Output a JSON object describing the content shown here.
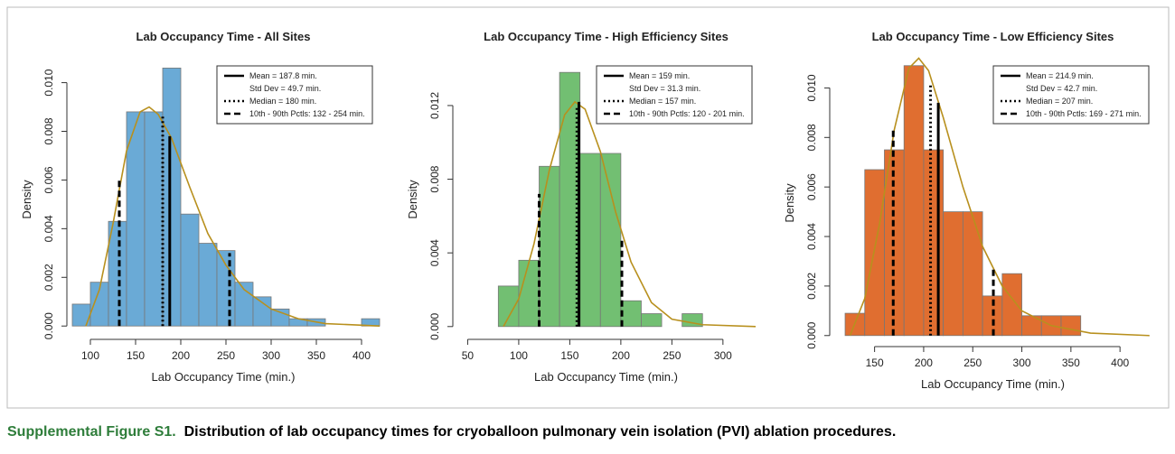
{
  "chart_data": [
    {
      "type": "histogram",
      "title": "Lab Occupancy Time - All Sites",
      "xlabel": "Lab Occupancy Time (min.)",
      "ylabel": "Density",
      "color": "#6aaad6",
      "curve_color": "#b8901e",
      "bins": [
        80,
        100,
        120,
        140,
        160,
        180,
        200,
        220,
        240,
        260,
        280,
        300,
        320,
        340,
        360,
        380,
        400,
        420
      ],
      "counts": [
        0.0009,
        0.0018,
        0.0043,
        0.0088,
        0.0088,
        0.0106,
        0.0046,
        0.0034,
        0.0031,
        0.0018,
        0.0012,
        0.0007,
        0.0003,
        0.0003,
        0,
        0,
        0.0003
      ],
      "xlim": [
        78,
        416
      ],
      "ylim": [
        -0.0004,
        0.0108
      ],
      "xticks": [
        100,
        150,
        200,
        250,
        300,
        350,
        400
      ],
      "yticks": [
        {
          "value": 0,
          "label": "0.000"
        },
        {
          "value": 0.002,
          "label": "0.002"
        },
        {
          "value": 0.004,
          "label": "0.004"
        },
        {
          "value": 0.006,
          "label": "0.006"
        },
        {
          "value": 0.008,
          "label": "0.008"
        },
        {
          "value": 0.01,
          "label": "0.010"
        }
      ],
      "curve": {
        "x": [
          95,
          110,
          125,
          140,
          155,
          165,
          175,
          190,
          210,
          230,
          250,
          270,
          300,
          330,
          360,
          420
        ],
        "y": [
          0,
          0.0015,
          0.0042,
          0.0072,
          0.0088,
          0.009,
          0.0087,
          0.0077,
          0.0057,
          0.0038,
          0.0025,
          0.0015,
          0.0007,
          0.0003,
          0.0001,
          0
        ]
      },
      "vlines": [
        {
          "x": 187.8,
          "top": 0.0078,
          "style": "solid"
        },
        {
          "x": 180,
          "top": 0.0087,
          "style": "dotted"
        },
        {
          "x": 132,
          "top": 0.006,
          "style": "dashed"
        },
        {
          "x": 254,
          "top": 0.003,
          "style": "dashed"
        }
      ],
      "legend_position": "topright",
      "legend": [
        {
          "label": "Mean = 187.8 min.",
          "style": "solid"
        },
        {
          "label": "Std Dev = 49.7 min."
        },
        {
          "label": "Median = 180 min.",
          "style": "dotted"
        },
        {
          "label": "10th - 90th Pctls: 132 - 254 min.",
          "style": "dashed"
        }
      ]
    },
    {
      "type": "histogram",
      "title": "Lab Occupancy Time - High Efficiency Sites",
      "xlabel": "Lab Occupancy Time (min.)",
      "ylabel": "Density",
      "color": "#72bf72",
      "curve_color": "#b8901e",
      "bins": [
        40,
        60,
        80,
        100,
        120,
        140,
        160,
        180,
        200,
        220,
        240,
        260,
        280
      ],
      "counts": [
        0,
        0,
        0.0022,
        0.0036,
        0.0087,
        0.0138,
        0.0094,
        0.0094,
        0.0014,
        0.0007,
        0,
        0.0007
      ],
      "xlim": [
        39,
        332
      ],
      "ylim": [
        -0.0005,
        0.0143
      ],
      "xticks": [
        50,
        100,
        150,
        200,
        250,
        300
      ],
      "yticks": [
        {
          "value": 0,
          "label": "0.000"
        },
        {
          "value": 0.004,
          "label": "0.004"
        },
        {
          "value": 0.008,
          "label": "0.008"
        },
        {
          "value": 0.012,
          "label": "0.012"
        }
      ],
      "curve": {
        "x": [
          85,
          100,
          115,
          130,
          145,
          155,
          165,
          180,
          195,
          210,
          230,
          250,
          280,
          332
        ],
        "y": [
          0,
          0.0015,
          0.0045,
          0.0085,
          0.0115,
          0.0122,
          0.0118,
          0.0095,
          0.0062,
          0.0035,
          0.0013,
          0.0004,
          0.0001,
          0
        ]
      },
      "vlines": [
        {
          "x": 159,
          "top": 0.0122,
          "style": "solid"
        },
        {
          "x": 157,
          "top": 0.012,
          "style": "dotted"
        },
        {
          "x": 120,
          "top": 0.0072,
          "style": "dashed"
        },
        {
          "x": 201,
          "top": 0.0047,
          "style": "dashed"
        }
      ],
      "legend_position": "topright",
      "legend": [
        {
          "label": "Mean = 159 min.",
          "style": "solid"
        },
        {
          "label": "Std Dev = 31.3 min."
        },
        {
          "label": "Median = 157 min.",
          "style": "dotted"
        },
        {
          "label": "10th - 90th Pctls: 120 - 201 min.",
          "style": "dashed"
        }
      ]
    },
    {
      "type": "histogram",
      "title": "Lab Occupancy Time - Low Efficiency Sites",
      "xlabel": "Lab Occupancy Time (min.)",
      "ylabel": "Density",
      "color": "#e06e30",
      "curve_color": "#b8901e",
      "bins": [
        120,
        140,
        160,
        180,
        200,
        220,
        240,
        260,
        280,
        300,
        320,
        340,
        360
      ],
      "counts": [
        0.0009,
        0.0067,
        0.0075,
        0.0109,
        0.0075,
        0.005,
        0.005,
        0.0016,
        0.0025,
        0.0008,
        0.0008,
        0.0008
      ],
      "xlim": [
        108,
        433
      ],
      "ylim": [
        -0.0003,
        0.011
      ],
      "xticks": [
        150,
        200,
        250,
        300,
        350,
        400
      ],
      "yticks": [
        {
          "value": 0,
          "label": "0.000"
        },
        {
          "value": 0.002,
          "label": "0.002"
        },
        {
          "value": 0.004,
          "label": "0.004"
        },
        {
          "value": 0.006,
          "label": "0.006"
        },
        {
          "value": 0.008,
          "label": "0.008"
        },
        {
          "value": 0.01,
          "label": "0.010"
        }
      ],
      "curve": {
        "x": [
          125,
          140,
          155,
          170,
          185,
          195,
          205,
          220,
          240,
          260,
          280,
          300,
          330,
          370,
          430
        ],
        "y": [
          0,
          0.0015,
          0.0045,
          0.0083,
          0.0108,
          0.0112,
          0.0107,
          0.0088,
          0.006,
          0.0036,
          0.002,
          0.001,
          0.0004,
          0.0001,
          0
        ]
      },
      "vlines": [
        {
          "x": 214.9,
          "top": 0.0094,
          "style": "solid"
        },
        {
          "x": 207,
          "top": 0.0102,
          "style": "dotted"
        },
        {
          "x": 169,
          "top": 0.0083,
          "style": "dashed"
        },
        {
          "x": 271,
          "top": 0.0028,
          "style": "dashed"
        }
      ],
      "legend_position": "topright",
      "legend": [
        {
          "label": "Mean = 214.9 min.",
          "style": "solid"
        },
        {
          "label": "Std Dev = 42.7 min."
        },
        {
          "label": "Median = 207 min.",
          "style": "dotted"
        },
        {
          "label": "10th - 90th Pctls: 169 - 271 min.",
          "style": "dashed"
        }
      ]
    }
  ],
  "caption": {
    "label": "Supplemental Figure S1.",
    "text": "Distribution of lab occupancy times for cryoballoon pulmonary vein isolation (PVI) ablation procedures."
  }
}
